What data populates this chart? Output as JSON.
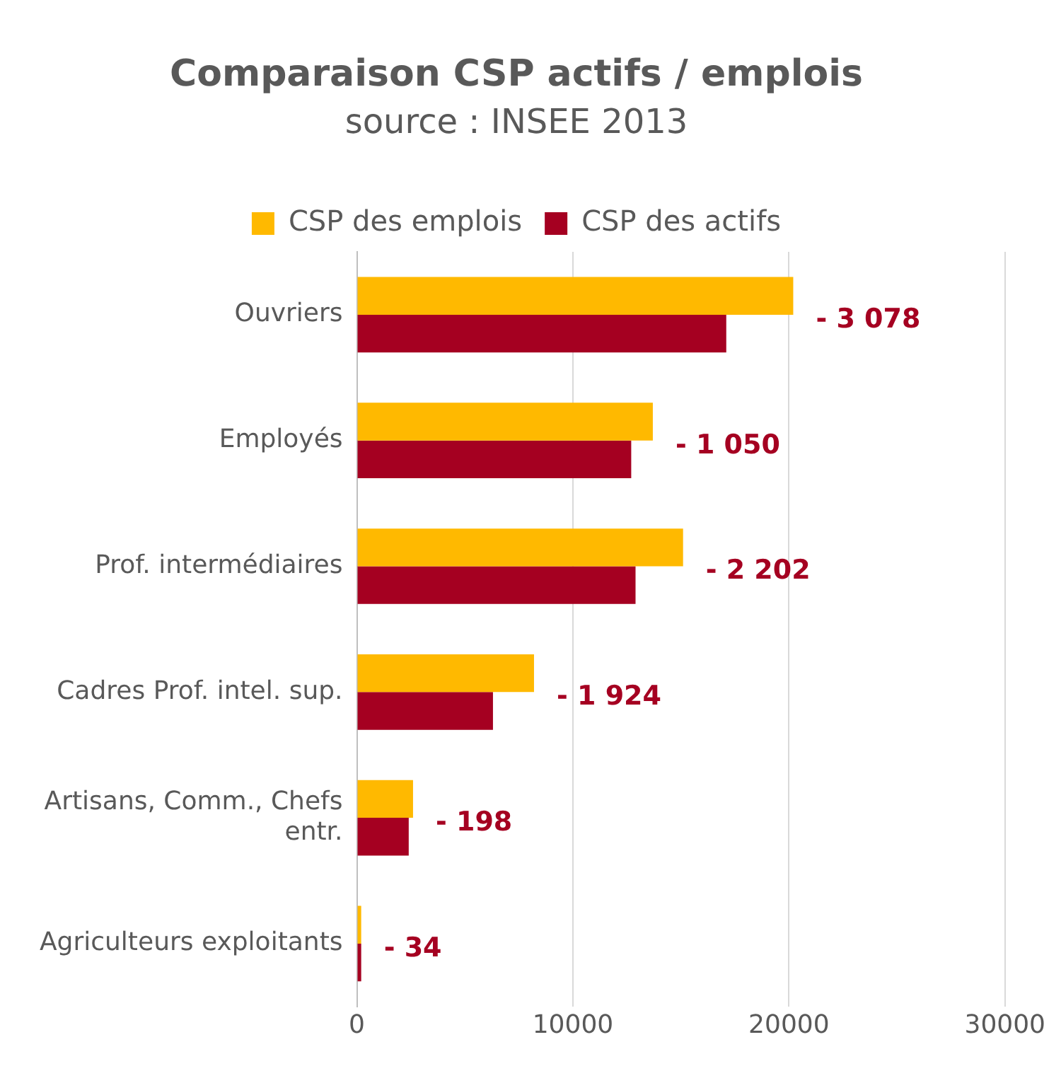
{
  "chart_data": {
    "type": "bar",
    "orientation": "horizontal",
    "title": "Comparaison CSP actifs / emplois",
    "subtitle": "source : INSEE 2013",
    "categories": [
      "Ouvriers",
      "Employés",
      "Prof. intermédiaires",
      "Cadres Prof. intel. sup.",
      "Artisans, Comm., Chefs entr.",
      "Agriculteurs exploitants"
    ],
    "series": [
      {
        "name": "CSP des emplois",
        "color": "#ffb900",
        "values": [
          20200,
          13700,
          15100,
          8200,
          2600,
          200
        ]
      },
      {
        "name": "CSP des actifs",
        "color": "#a50021",
        "values": [
          17100,
          12700,
          12900,
          6300,
          2400,
          200
        ]
      }
    ],
    "xlim": [
      0,
      30000
    ],
    "xticks": [
      0,
      10000,
      20000,
      30000
    ],
    "grid": "x",
    "legend": "top",
    "annotations": [
      "- 3 078",
      "- 1 050",
      "- 2 202",
      "- 1 924",
      "- 198",
      "- 34"
    ]
  }
}
